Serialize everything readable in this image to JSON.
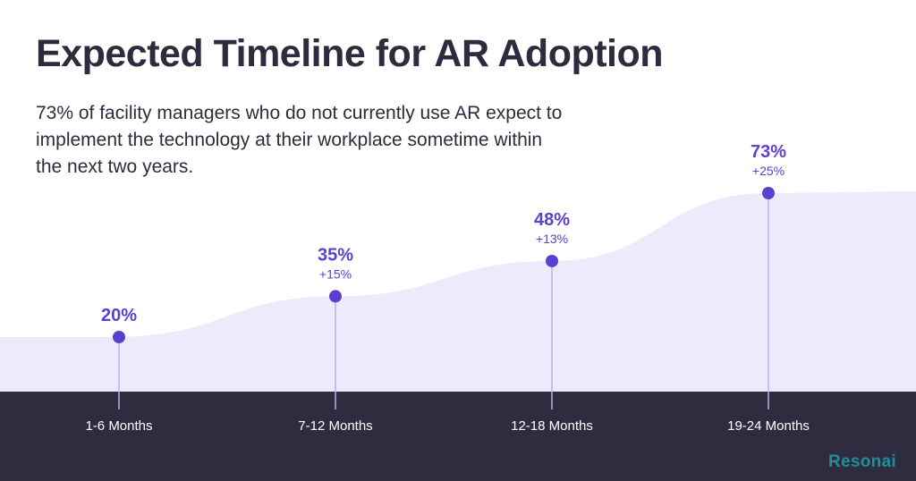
{
  "title": "Expected Timeline for AR Adoption",
  "subtitle": "73% of facility managers who do not currently use AR expect to implement the technology at their workplace sometime within the next two years.",
  "brand": {
    "name": "Resonai"
  },
  "colors": {
    "accent": "#5b3fd0",
    "area": "#ecebfb",
    "band": "#2f2c40",
    "band_text": "#ffffff",
    "text": "#2d2b3d",
    "stem": "#b9b2ec",
    "logo": "#1e8f99"
  },
  "chart_data": {
    "type": "area",
    "categories": [
      "1-6 Months",
      "7-12 Months",
      "12-18 Months",
      "19-24 Months"
    ],
    "series": [
      {
        "values": [
          20,
          35,
          48,
          73
        ],
        "labels": [
          "20%",
          "35%",
          "48%",
          "73%"
        ],
        "change_labels": [
          "",
          "+15%",
          "+13%",
          "+25%"
        ]
      }
    ],
    "ylim": [
      0,
      100
    ],
    "grid": false,
    "legend": "none"
  }
}
